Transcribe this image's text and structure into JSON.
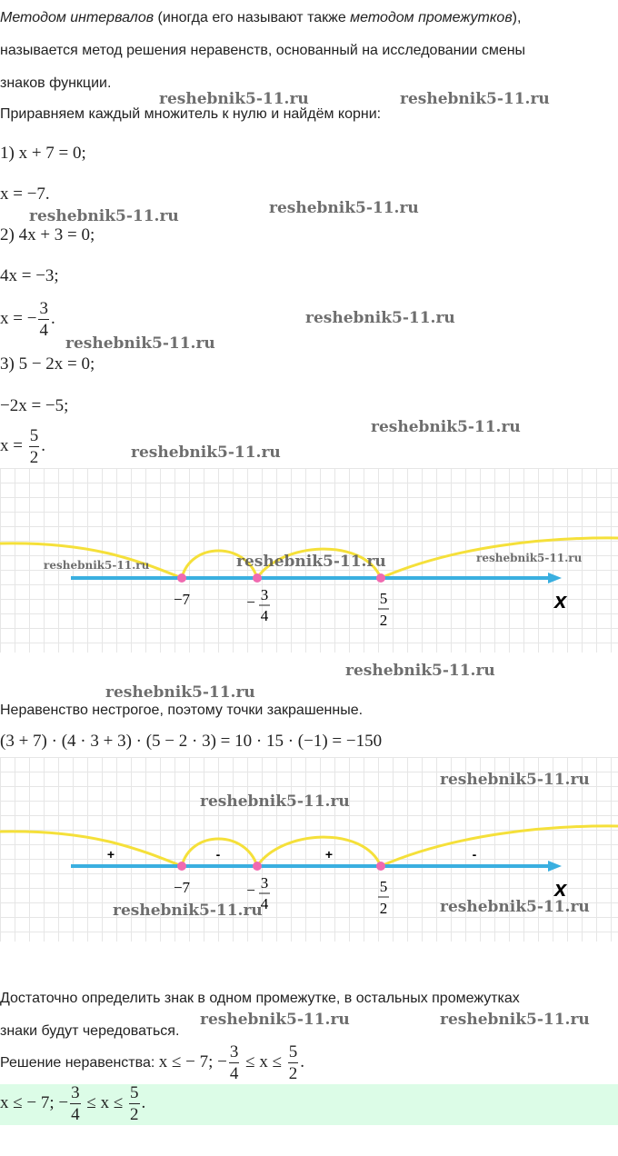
{
  "intro": {
    "term1": "Методом интервалов",
    "mid1": " (иногда его называют также ",
    "term2": "методом промежутков",
    "mid2": "),",
    "line2": "называется метод решения неравенств, основанный на исследовании смены",
    "line3": "знаков функции."
  },
  "step_intro": "Приравняем каждый множитель к нулю и найдём корни:",
  "eq": {
    "e1": "1) x + 7 = 0;",
    "e2": "x = −7.",
    "e3": "2) 4x + 3 = 0;",
    "e4": "4x = −3;",
    "e5_pre": "x = −",
    "e5_num": "3",
    "e5_den": "4",
    "e6": "3) 5 − 2x = 0;",
    "e7": "−2x = −5;",
    "e8_pre": "x = ",
    "e8_num": "5",
    "e8_den": "2"
  },
  "watermark": "reshebnik5-11.ru",
  "axis": {
    "label": "x",
    "p1": "−7",
    "p2_sign": "−",
    "p2_num": "3",
    "p2_den": "4",
    "p3_num": "5",
    "p3_den": "2",
    "signs": [
      "+",
      "-",
      "+",
      "-"
    ]
  },
  "colors": {
    "axis": "#3aafe0",
    "arc": "#f5e03a",
    "point": "#f06ab0",
    "answer_bg": "#dcfce7"
  },
  "strict_note": "Неравенство нестрогое, поэтому точки закрашенные.",
  "check": "(3 + 7) · (4 · 3 + 3) · (5 − 2 · 3) = 10 · 15 · (−1) = −150",
  "alternate": {
    "line1": "Достаточно определить знак в одном промежутке, в остальных промежутках",
    "line2": "знаки будут чередоваться."
  },
  "solution": {
    "label": "Решение неравенства: ",
    "pre": "x ≤ − 7; −",
    "num1": "3",
    "den1": "4",
    "mid": " ≤ x ≤ ",
    "num2": "5",
    "den2": "2",
    "end": "."
  }
}
